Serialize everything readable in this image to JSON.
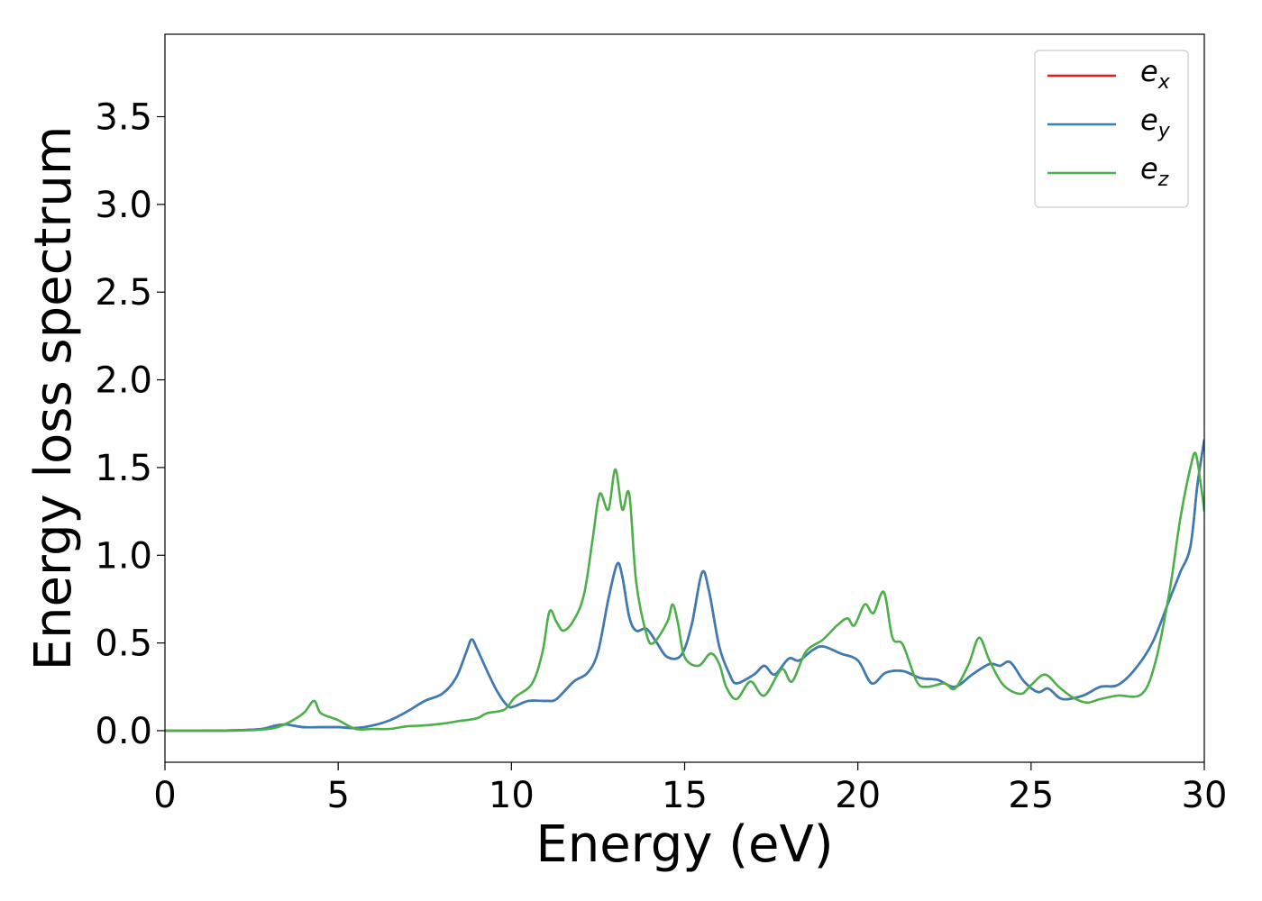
{
  "chart_data": {
    "type": "line",
    "xlabel": "Energy (eV)",
    "ylabel": "Energy loss spectrum",
    "xlim": [
      0,
      30
    ],
    "ylim": [
      -0.18,
      3.97
    ],
    "xticks": [
      0,
      5,
      10,
      15,
      20,
      25,
      30
    ],
    "yticks": [
      0.0,
      0.5,
      1.0,
      1.5,
      2.0,
      2.5,
      3.0,
      3.5
    ],
    "xtick_labels": [
      "0",
      "5",
      "10",
      "15",
      "20",
      "25",
      "30"
    ],
    "ytick_labels": [
      "0.0",
      "0.5",
      "1.0",
      "1.5",
      "2.0",
      "2.5",
      "3.0",
      "3.5"
    ],
    "grid": false,
    "legend_position": "top-right",
    "series": [
      {
        "name": "e",
        "subscript": "x",
        "color": "#e41a1c",
        "points": [
          [
            0,
            0
          ],
          [
            1,
            0
          ],
          [
            2,
            0.002
          ],
          [
            2.8,
            0.01
          ],
          [
            3.2,
            0.03
          ],
          [
            3.5,
            0.035
          ],
          [
            4,
            0.02
          ],
          [
            4.5,
            0.02
          ],
          [
            5,
            0.02
          ],
          [
            5.5,
            0.015
          ],
          [
            6,
            0.03
          ],
          [
            6.5,
            0.06
          ],
          [
            7,
            0.11
          ],
          [
            7.5,
            0.17
          ],
          [
            8,
            0.21
          ],
          [
            8.4,
            0.3
          ],
          [
            8.7,
            0.45
          ],
          [
            8.85,
            0.52
          ],
          [
            9,
            0.47
          ],
          [
            9.3,
            0.34
          ],
          [
            9.6,
            0.22
          ],
          [
            9.9,
            0.14
          ],
          [
            10.1,
            0.14
          ],
          [
            10.5,
            0.17
          ],
          [
            11,
            0.17
          ],
          [
            11.3,
            0.18
          ],
          [
            11.8,
            0.28
          ],
          [
            12.2,
            0.33
          ],
          [
            12.5,
            0.45
          ],
          [
            12.8,
            0.75
          ],
          [
            13.05,
            0.95
          ],
          [
            13.2,
            0.88
          ],
          [
            13.4,
            0.65
          ],
          [
            13.6,
            0.57
          ],
          [
            13.9,
            0.58
          ],
          [
            14.2,
            0.5
          ],
          [
            14.5,
            0.42
          ],
          [
            14.9,
            0.43
          ],
          [
            15.2,
            0.6
          ],
          [
            15.5,
            0.9
          ],
          [
            15.7,
            0.8
          ],
          [
            16,
            0.48
          ],
          [
            16.3,
            0.32
          ],
          [
            16.5,
            0.27
          ],
          [
            17,
            0.32
          ],
          [
            17.3,
            0.37
          ],
          [
            17.6,
            0.32
          ],
          [
            18,
            0.41
          ],
          [
            18.3,
            0.4
          ],
          [
            18.7,
            0.46
          ],
          [
            19,
            0.48
          ],
          [
            19.5,
            0.44
          ],
          [
            20,
            0.4
          ],
          [
            20.4,
            0.27
          ],
          [
            20.8,
            0.33
          ],
          [
            21.3,
            0.34
          ],
          [
            21.8,
            0.3
          ],
          [
            22.3,
            0.29
          ],
          [
            22.8,
            0.25
          ],
          [
            23.3,
            0.32
          ],
          [
            23.8,
            0.38
          ],
          [
            24.1,
            0.37
          ],
          [
            24.4,
            0.39
          ],
          [
            24.8,
            0.28
          ],
          [
            25.2,
            0.22
          ],
          [
            25.5,
            0.24
          ],
          [
            25.9,
            0.18
          ],
          [
            26.5,
            0.2
          ],
          [
            27,
            0.25
          ],
          [
            27.5,
            0.26
          ],
          [
            28,
            0.35
          ],
          [
            28.5,
            0.5
          ],
          [
            29,
            0.75
          ],
          [
            29.3,
            0.9
          ],
          [
            29.6,
            1.05
          ],
          [
            29.8,
            1.4
          ],
          [
            30,
            1.66
          ]
        ]
      },
      {
        "name": "e",
        "subscript": "y",
        "color": "#377eb8",
        "points": [
          [
            0,
            0
          ],
          [
            1,
            0
          ],
          [
            2,
            0.002
          ],
          [
            2.8,
            0.01
          ],
          [
            3.2,
            0.03
          ],
          [
            3.5,
            0.035
          ],
          [
            4,
            0.02
          ],
          [
            4.5,
            0.02
          ],
          [
            5,
            0.02
          ],
          [
            5.5,
            0.015
          ],
          [
            6,
            0.03
          ],
          [
            6.5,
            0.06
          ],
          [
            7,
            0.11
          ],
          [
            7.5,
            0.17
          ],
          [
            8,
            0.21
          ],
          [
            8.4,
            0.3
          ],
          [
            8.7,
            0.45
          ],
          [
            8.85,
            0.52
          ],
          [
            9,
            0.47
          ],
          [
            9.3,
            0.34
          ],
          [
            9.6,
            0.22
          ],
          [
            9.9,
            0.14
          ],
          [
            10.1,
            0.14
          ],
          [
            10.5,
            0.17
          ],
          [
            11,
            0.17
          ],
          [
            11.3,
            0.18
          ],
          [
            11.8,
            0.28
          ],
          [
            12.2,
            0.33
          ],
          [
            12.5,
            0.45
          ],
          [
            12.8,
            0.75
          ],
          [
            13.05,
            0.95
          ],
          [
            13.2,
            0.88
          ],
          [
            13.4,
            0.65
          ],
          [
            13.6,
            0.57
          ],
          [
            13.9,
            0.58
          ],
          [
            14.2,
            0.5
          ],
          [
            14.5,
            0.42
          ],
          [
            14.9,
            0.43
          ],
          [
            15.2,
            0.6
          ],
          [
            15.5,
            0.9
          ],
          [
            15.7,
            0.8
          ],
          [
            16,
            0.48
          ],
          [
            16.3,
            0.32
          ],
          [
            16.5,
            0.27
          ],
          [
            17,
            0.32
          ],
          [
            17.3,
            0.37
          ],
          [
            17.6,
            0.32
          ],
          [
            18,
            0.41
          ],
          [
            18.3,
            0.4
          ],
          [
            18.7,
            0.46
          ],
          [
            19,
            0.48
          ],
          [
            19.5,
            0.44
          ],
          [
            20,
            0.4
          ],
          [
            20.4,
            0.27
          ],
          [
            20.8,
            0.33
          ],
          [
            21.3,
            0.34
          ],
          [
            21.8,
            0.3
          ],
          [
            22.3,
            0.29
          ],
          [
            22.8,
            0.25
          ],
          [
            23.3,
            0.32
          ],
          [
            23.8,
            0.38
          ],
          [
            24.1,
            0.37
          ],
          [
            24.4,
            0.39
          ],
          [
            24.8,
            0.28
          ],
          [
            25.2,
            0.22
          ],
          [
            25.5,
            0.24
          ],
          [
            25.9,
            0.18
          ],
          [
            26.5,
            0.2
          ],
          [
            27,
            0.25
          ],
          [
            27.5,
            0.26
          ],
          [
            28,
            0.35
          ],
          [
            28.5,
            0.5
          ],
          [
            29,
            0.75
          ],
          [
            29.3,
            0.9
          ],
          [
            29.6,
            1.05
          ],
          [
            29.8,
            1.4
          ],
          [
            30,
            1.66
          ]
        ]
      },
      {
        "name": "e",
        "subscript": "z",
        "color": "#4daf4a",
        "points": [
          [
            0,
            0
          ],
          [
            2,
            0
          ],
          [
            3,
            0.01
          ],
          [
            3.5,
            0.04
          ],
          [
            4,
            0.1
          ],
          [
            4.3,
            0.17
          ],
          [
            4.5,
            0.1
          ],
          [
            5,
            0.06
          ],
          [
            5.5,
            0.01
          ],
          [
            6,
            0.01
          ],
          [
            6.5,
            0.01
          ],
          [
            7,
            0.025
          ],
          [
            7.5,
            0.03
          ],
          [
            8,
            0.04
          ],
          [
            8.5,
            0.055
          ],
          [
            9,
            0.07
          ],
          [
            9.3,
            0.1
          ],
          [
            9.8,
            0.12
          ],
          [
            10.1,
            0.19
          ],
          [
            10.6,
            0.27
          ],
          [
            10.9,
            0.45
          ],
          [
            11.1,
            0.68
          ],
          [
            11.3,
            0.62
          ],
          [
            11.5,
            0.57
          ],
          [
            11.8,
            0.63
          ],
          [
            12.1,
            0.78
          ],
          [
            12.35,
            1.1
          ],
          [
            12.55,
            1.35
          ],
          [
            12.8,
            1.26
          ],
          [
            13,
            1.49
          ],
          [
            13.2,
            1.26
          ],
          [
            13.4,
            1.35
          ],
          [
            13.6,
            0.85
          ],
          [
            13.9,
            0.55
          ],
          [
            14.1,
            0.5
          ],
          [
            14.5,
            0.62
          ],
          [
            14.65,
            0.72
          ],
          [
            14.8,
            0.62
          ],
          [
            15,
            0.42
          ],
          [
            15.4,
            0.37
          ],
          [
            15.75,
            0.44
          ],
          [
            16,
            0.38
          ],
          [
            16.2,
            0.25
          ],
          [
            16.5,
            0.18
          ],
          [
            16.9,
            0.28
          ],
          [
            17.3,
            0.2
          ],
          [
            17.8,
            0.35
          ],
          [
            18.1,
            0.28
          ],
          [
            18.5,
            0.45
          ],
          [
            19,
            0.52
          ],
          [
            19.4,
            0.6
          ],
          [
            19.7,
            0.64
          ],
          [
            19.9,
            0.6
          ],
          [
            20.2,
            0.72
          ],
          [
            20.45,
            0.67
          ],
          [
            20.75,
            0.79
          ],
          [
            21,
            0.53
          ],
          [
            21.3,
            0.49
          ],
          [
            21.7,
            0.28
          ],
          [
            22,
            0.25
          ],
          [
            22.5,
            0.27
          ],
          [
            22.8,
            0.24
          ],
          [
            23.2,
            0.38
          ],
          [
            23.5,
            0.53
          ],
          [
            23.8,
            0.4
          ],
          [
            24.2,
            0.26
          ],
          [
            24.7,
            0.21
          ],
          [
            25,
            0.26
          ],
          [
            25.4,
            0.32
          ],
          [
            25.8,
            0.25
          ],
          [
            26.2,
            0.19
          ],
          [
            26.6,
            0.16
          ],
          [
            27,
            0.18
          ],
          [
            27.5,
            0.2
          ],
          [
            28.2,
            0.21
          ],
          [
            28.6,
            0.4
          ],
          [
            29,
            0.8
          ],
          [
            29.3,
            1.2
          ],
          [
            29.6,
            1.5
          ],
          [
            29.75,
            1.58
          ],
          [
            29.9,
            1.4
          ],
          [
            30,
            1.25
          ]
        ]
      }
    ]
  }
}
